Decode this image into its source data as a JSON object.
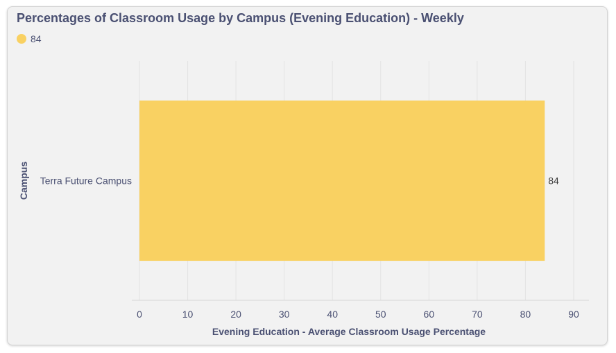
{
  "chart_data": {
    "type": "bar",
    "orientation": "horizontal",
    "title": "Percentages of Classroom Usage by Campus (Evening Education) - Weekly",
    "xlabel": "Evening Education - Average Classroom Usage Percentage",
    "ylabel": "Campus",
    "categories": [
      "Terra Future Campus"
    ],
    "series": [
      {
        "name": "84",
        "values": [
          84
        ],
        "color": "#f9d162"
      }
    ],
    "data_labels": [
      "84"
    ],
    "xlim": [
      0,
      90
    ],
    "xticks": [
      0,
      10,
      20,
      30,
      40,
      50,
      60,
      70,
      80,
      90
    ],
    "xtick_labels": [
      "0",
      "10",
      "20",
      "30",
      "40",
      "50",
      "60",
      "70",
      "80",
      "90"
    ],
    "grid": true,
    "legend_position": "top-left"
  }
}
